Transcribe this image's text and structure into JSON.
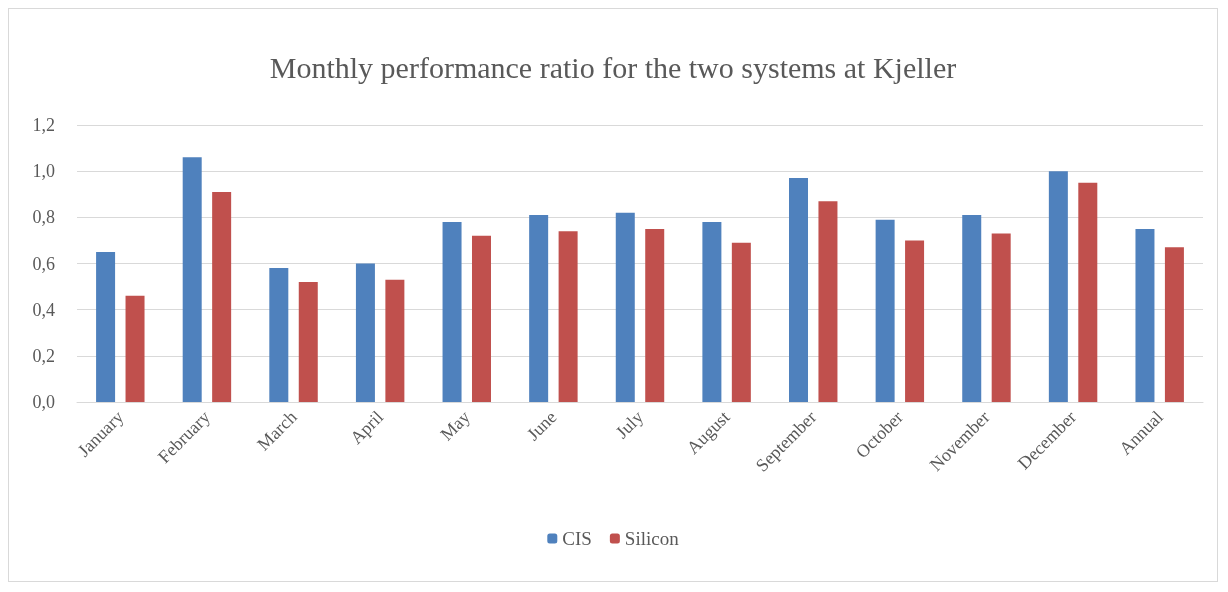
{
  "chart_data": {
    "type": "bar",
    "title": "Monthly performance ratio for the two systems at Kjeller",
    "categories": [
      "January",
      "February",
      "March",
      "April",
      "May",
      "June",
      "July",
      "August",
      "September",
      "October",
      "November",
      "December",
      "Annual"
    ],
    "series": [
      {
        "name": "CIS",
        "color": "#4f81bd",
        "values": [
          0.65,
          1.06,
          0.58,
          0.6,
          0.78,
          0.81,
          0.82,
          0.78,
          0.97,
          0.79,
          0.81,
          1.0,
          0.75
        ]
      },
      {
        "name": "Silicon",
        "color": "#c0504d",
        "values": [
          0.46,
          0.91,
          0.52,
          0.53,
          0.72,
          0.74,
          0.75,
          0.69,
          0.87,
          0.7,
          0.73,
          0.95,
          0.67
        ]
      }
    ],
    "ylim": [
      0,
      1.2
    ],
    "yticks": [
      {
        "value": 0,
        "label": "0,0"
      },
      {
        "value": 0.2,
        "label": "0,2"
      },
      {
        "value": 0.4,
        "label": "0,4"
      },
      {
        "value": 0.6,
        "label": "0,6"
      },
      {
        "value": 0.8,
        "label": "0,8"
      },
      {
        "value": 1.0,
        "label": "1,0"
      },
      {
        "value": 1.2,
        "label": "1,2"
      }
    ],
    "grid": "y",
    "legend": "bottom"
  }
}
